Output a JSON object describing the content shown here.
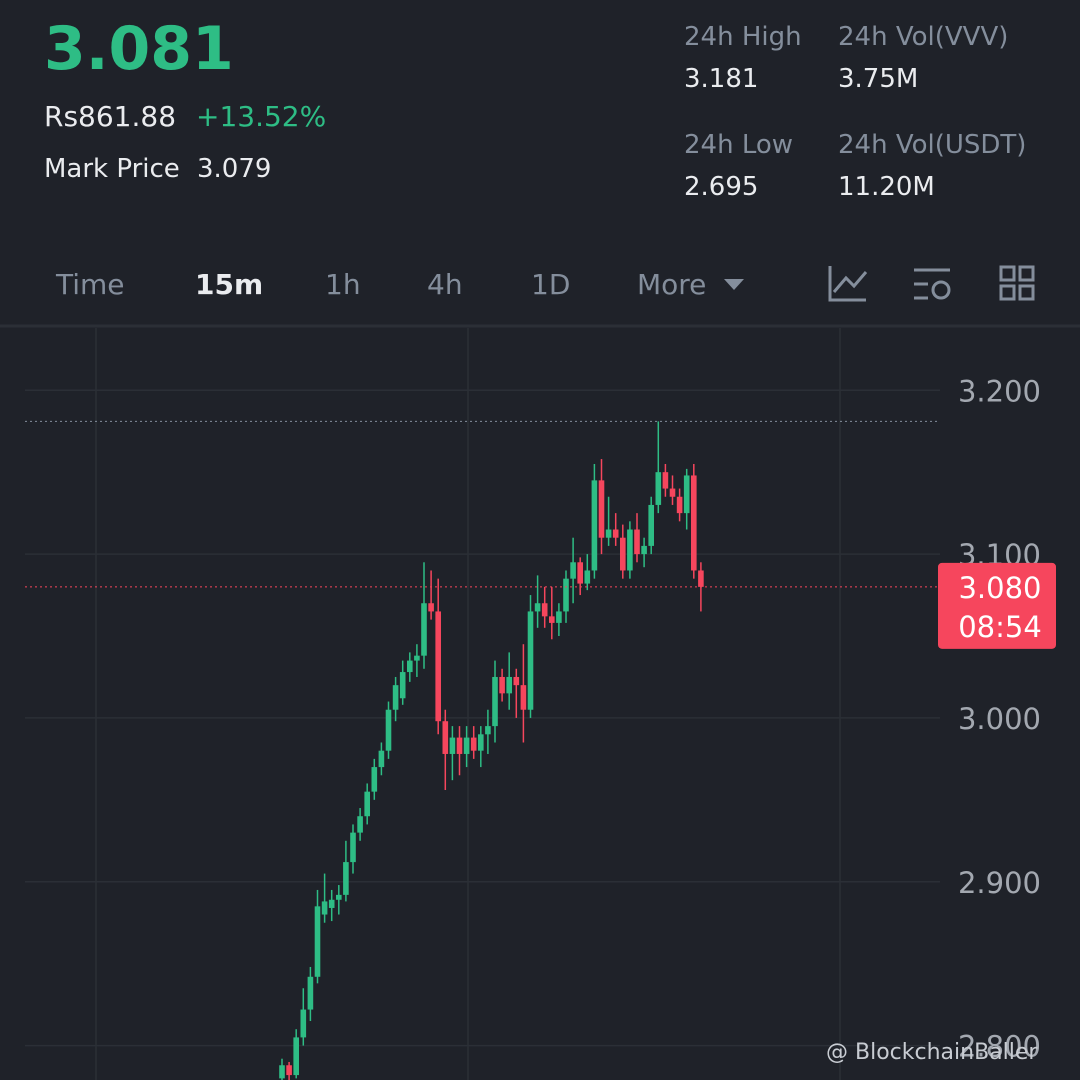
{
  "header": {
    "last_price": "3.081",
    "fiat_price": "Rs861.88",
    "change": "+13.52%",
    "mark_price_label": "Mark Price",
    "mark_price": "3.079"
  },
  "stats": [
    {
      "label": "24h High",
      "value": "3.181"
    },
    {
      "label": "24h Vol(VVV)",
      "value": "3.75M"
    },
    {
      "label": "24h Low",
      "value": "2.695"
    },
    {
      "label": "24h Vol(USDT)",
      "value": "11.20M"
    }
  ],
  "tabs": [
    "Time",
    "15m",
    "1h",
    "4h",
    "1D",
    "More"
  ],
  "watermark": "@ BlockchainBaller",
  "chart_data": {
    "type": "candlestick",
    "up_color": "#2ebd85",
    "down_color": "#f6465d",
    "grid": true,
    "ylim": [
      2.779,
      3.238
    ],
    "yticks": [
      {
        "value": 2.8,
        "label": "2.800"
      },
      {
        "value": 2.9,
        "label": "2.900"
      },
      {
        "value": 3.0,
        "label": "3.000"
      },
      {
        "value": 3.1,
        "label": "3.100"
      },
      {
        "value": 3.2,
        "label": "3.200"
      }
    ],
    "last_price": {
      "value": 3.08,
      "label": "3.080"
    },
    "countdown": "08:54",
    "high_line": 3.181,
    "open": [
      2.78,
      2.788,
      2.782,
      2.805,
      2.822,
      2.842,
      2.88,
      2.884,
      2.889,
      2.892,
      2.912,
      2.93,
      2.94,
      2.955,
      2.97,
      2.98,
      3.005,
      3.012,
      3.028,
      3.035,
      3.038,
      3.07,
      3.065,
      2.998,
      2.978,
      2.988,
      2.978,
      2.988,
      2.98,
      2.99,
      2.995,
      3.025,
      3.015,
      3.025,
      3.02,
      3.005,
      3.065,
      3.07,
      3.062,
      3.058,
      3.065,
      3.085,
      3.095,
      3.082,
      3.09,
      3.145,
      3.11,
      3.115,
      3.11,
      3.09,
      3.115,
      3.1,
      3.105,
      3.13,
      3.15,
      3.14,
      3.135,
      3.125,
      3.148,
      3.09
    ],
    "high": [
      2.792,
      2.79,
      2.81,
      2.835,
      2.848,
      2.895,
      2.905,
      2.895,
      2.898,
      2.925,
      2.935,
      2.945,
      2.96,
      2.975,
      2.985,
      3.01,
      3.025,
      3.035,
      3.04,
      3.045,
      3.095,
      3.09,
      3.085,
      3.005,
      2.995,
      2.995,
      2.995,
      2.995,
      2.995,
      3.005,
      3.035,
      3.03,
      3.04,
      3.03,
      3.045,
      3.075,
      3.087,
      3.08,
      3.08,
      3.07,
      3.09,
      3.11,
      3.098,
      3.1,
      3.155,
      3.158,
      3.135,
      3.125,
      3.118,
      3.12,
      3.125,
      3.11,
      3.135,
      3.181,
      3.155,
      3.148,
      3.14,
      3.152,
      3.155,
      3.095
    ],
    "low": [
      2.778,
      2.779,
      2.78,
      2.8,
      2.815,
      2.838,
      2.875,
      2.876,
      2.88,
      2.888,
      2.905,
      2.925,
      2.935,
      2.95,
      2.965,
      2.975,
      2.998,
      3.008,
      3.022,
      3.025,
      3.03,
      3.06,
      2.99,
      2.956,
      2.962,
      2.965,
      2.97,
      2.975,
      2.97,
      2.978,
      2.985,
      3.01,
      3.005,
      3.0,
      2.985,
      3.0,
      3.055,
      3.055,
      3.048,
      3.05,
      3.058,
      3.07,
      3.075,
      3.078,
      3.085,
      3.1,
      3.105,
      3.105,
      3.085,
      3.085,
      3.095,
      3.092,
      3.1,
      3.125,
      3.135,
      3.13,
      3.12,
      3.115,
      3.085,
      3.065
    ],
    "close": [
      2.788,
      2.782,
      2.805,
      2.822,
      2.842,
      2.885,
      2.888,
      2.889,
      2.892,
      2.912,
      2.93,
      2.94,
      2.955,
      2.97,
      2.98,
      3.005,
      3.02,
      3.028,
      3.035,
      3.038,
      3.07,
      3.065,
      2.998,
      2.978,
      2.988,
      2.978,
      2.988,
      2.98,
      2.99,
      2.995,
      3.025,
      3.015,
      3.025,
      3.02,
      3.005,
      3.065,
      3.07,
      3.062,
      3.058,
      3.065,
      3.085,
      3.095,
      3.082,
      3.09,
      3.145,
      3.11,
      3.115,
      3.11,
      3.09,
      3.115,
      3.1,
      3.105,
      3.13,
      3.15,
      3.14,
      3.135,
      3.125,
      3.148,
      3.09,
      3.08
    ]
  }
}
